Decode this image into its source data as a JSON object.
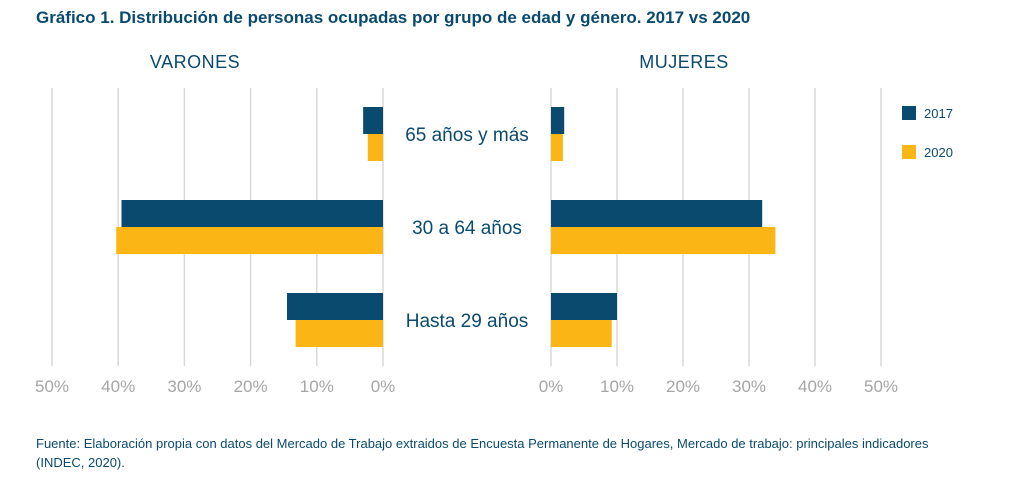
{
  "title": "Gráfico 1. Distribución de personas ocupadas por grupo de edad y género. 2017 vs 2020",
  "source": "Fuente: Elaboración propia con datos del Mercado de Trabajo extraidos de Encuesta Permanente de Hogares, Mercado de trabajo: principales indicadores (INDEC, 2020).",
  "colors": {
    "2017": "#0a4a6e",
    "2020": "#fbb615",
    "grid": "#d9d9d9",
    "axis_text": "#a6a6a6",
    "label_text": "#0a4a6e"
  },
  "chart_data": {
    "type": "bar",
    "orientation": "horizontal",
    "layout": "butterfly",
    "categories": [
      "65 años y más",
      "30 a 64 años",
      "Hasta 29 años"
    ],
    "panels": [
      {
        "title": "VARONES",
        "direction": "left",
        "xlim": [
          0,
          50
        ],
        "ticks": [
          "50%",
          "40%",
          "30%",
          "20%",
          "10%",
          "0%"
        ],
        "series": [
          {
            "name": "2017",
            "values": [
              3,
              39.5,
              14.5
            ]
          },
          {
            "name": "2020",
            "values": [
              2.3,
              40.3,
              13.2
            ]
          }
        ]
      },
      {
        "title": "MUJERES",
        "direction": "right",
        "xlim": [
          0,
          50
        ],
        "ticks": [
          "0%",
          "10%",
          "20%",
          "30%",
          "40%",
          "50%"
        ],
        "series": [
          {
            "name": "2017",
            "values": [
              2,
              32,
              10
            ]
          },
          {
            "name": "2020",
            "values": [
              1.8,
              34,
              9.2
            ]
          }
        ]
      }
    ],
    "legend": {
      "position": "right",
      "entries": [
        "2017",
        "2020"
      ]
    },
    "grid": true
  }
}
